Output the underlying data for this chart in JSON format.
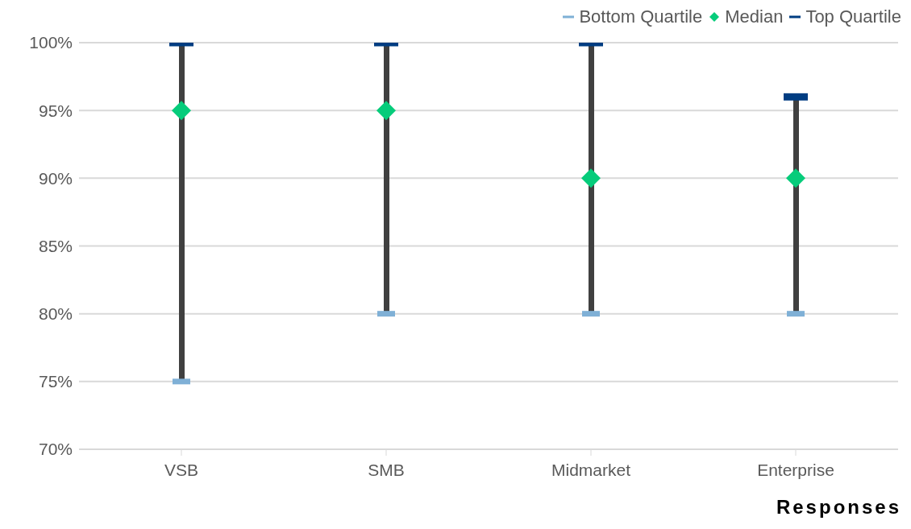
{
  "chart_data": {
    "type": "scatter",
    "xlabel": "Responses",
    "categories": [
      "VSB",
      "SMB",
      "Midmarket",
      "Enterprise"
    ],
    "series": [
      {
        "type": "bar",
        "color": "#404040",
        "base": [
          75,
          80,
          80,
          80
        ],
        "values": [
          25,
          20,
          20,
          16
        ]
      },
      {
        "name": "Bottom Quartile",
        "color": "#7fb0d6",
        "values": [
          75,
          80,
          80,
          80
        ]
      },
      {
        "name": "Median",
        "color": "#06cc7b",
        "marker": "diamond",
        "values": [
          95,
          95,
          90,
          90
        ]
      },
      {
        "name": "Top Quartile",
        "color": "#003d82",
        "values": [
          100,
          100,
          100,
          96
        ]
      }
    ],
    "ylim": [
      70,
      100
    ],
    "yticks": [
      {
        "value": 70,
        "label": "70%"
      },
      {
        "value": 75,
        "label": "75%"
      },
      {
        "value": 80,
        "label": "80%"
      },
      {
        "value": 85,
        "label": "85%"
      },
      {
        "value": 90,
        "label": "90%"
      },
      {
        "value": 95,
        "label": "95%"
      },
      {
        "value": 100,
        "label": "100%"
      }
    ],
    "grid": "y",
    "legend": "top right"
  }
}
